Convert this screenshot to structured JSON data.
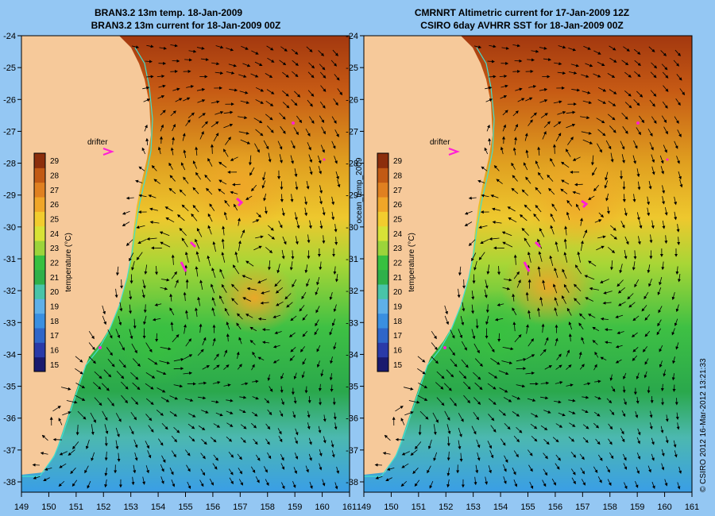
{
  "left_panel": {
    "title_line1": "BRAN3.2 13m temp. 18-Jan-2009",
    "title_line2": "BRAN3.2 13m current for 18-Jan-2009 00Z",
    "drifter_label": "drifter"
  },
  "right_panel": {
    "title_line1": "CMRNRT Altimetric current for 17-Jan-2009 12Z",
    "title_line2": "CSIRO 6day AVHRR SST for 18-Jan-2009 00Z",
    "drifter_label": "drifter"
  },
  "variable_label": "ocean_temp_2009",
  "colorbar": {
    "label": "temperature (°C)",
    "ticks": [
      "15",
      "16",
      "17",
      "18",
      "19",
      "20",
      "21",
      "22",
      "23",
      "24",
      "25",
      "26",
      "27",
      "28",
      "29"
    ],
    "colors": [
      "#1a1a6e",
      "#2a3aa8",
      "#2f66c8",
      "#3a8fe0",
      "#5fb0e8",
      "#49c4a8",
      "#2fb04a",
      "#38c040",
      "#9cd43a",
      "#d8e236",
      "#f2cc2e",
      "#f0a628",
      "#e08020",
      "#c25a14",
      "#8c2e0c"
    ]
  },
  "axes": {
    "x_ticks": [
      "149",
      "150",
      "151",
      "152",
      "153",
      "154",
      "155",
      "156",
      "157",
      "158",
      "159",
      "160",
      "161"
    ],
    "y_ticks": [
      "-24",
      "-25",
      "-26",
      "-27",
      "-28",
      "-29",
      "-30",
      "-31",
      "-32",
      "-33",
      "-34",
      "-35",
      "-36",
      "-37",
      "-38"
    ]
  },
  "credit": "© CSIRO 2012  16-Mar-2012 13:21:33",
  "colors": {
    "land": "#f6c99a",
    "coastline": "#40e0d0",
    "drifter": "#ff1fd6",
    "background": "#94c7f3"
  }
}
